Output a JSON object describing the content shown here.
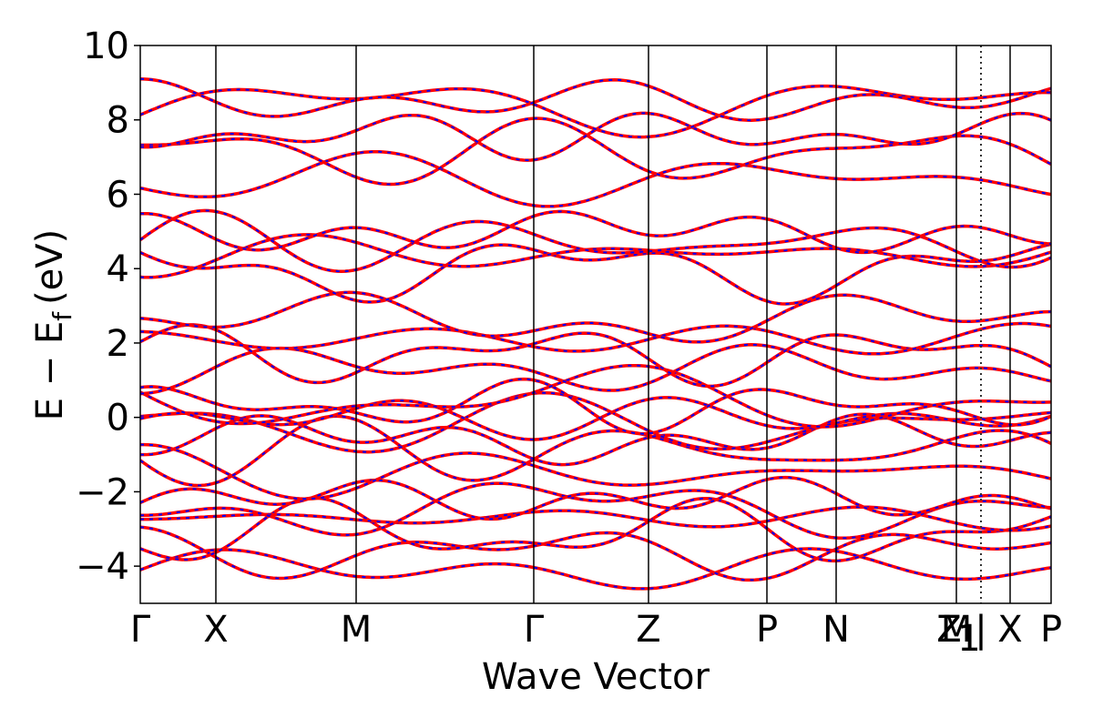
{
  "chart_data": {
    "type": "line",
    "title": "",
    "xlabel": "Wave Vector",
    "ylabel": {
      "main": "E − E",
      "sub": "f",
      "unit": "(eV)"
    },
    "ylim": [
      -5,
      10
    ],
    "xlim": [
      0,
      1
    ],
    "grid": false,
    "legend": "none",
    "y_ticks": [
      -4,
      -2,
      0,
      2,
      4,
      6,
      8,
      10
    ],
    "y_tick_labels": [
      "−4",
      "−2",
      "0",
      "2",
      "4",
      "6",
      "8",
      "10"
    ],
    "high_symmetry_points": [
      {
        "label": "Γ",
        "x": 0.0
      },
      {
        "label": "X",
        "x": 0.083
      },
      {
        "label": "M",
        "x": 0.237
      },
      {
        "label": "Γ",
        "x": 0.432
      },
      {
        "label": "Z",
        "x": 0.558
      },
      {
        "label": "P",
        "x": 0.688
      },
      {
        "label": "N",
        "x": 0.764
      },
      {
        "label": "Z",
        "x": 0.896
      },
      {
        "label": "M",
        "x": 0.896
      },
      {
        "label": "1",
        "x": 0.896
      },
      {
        "label": "|",
        "x": 0.923
      },
      {
        "label": "X",
        "x": 0.955
      },
      {
        "label": "P",
        "x": 1.0
      }
    ],
    "series_colors": {
      "overlay_a": "#ff0000",
      "overlay_b": "#0000ff"
    },
    "bands_at_gamma_approx": [
      -4.1,
      -3.6,
      -3.1,
      -2.7,
      -2.4,
      -2.2,
      -1.5,
      -0.9,
      -0.6,
      -0.2,
      0.0,
      0.3,
      0.5,
      1.3,
      1.7,
      2.1,
      2.6,
      4.0,
      4.4,
      4.7,
      5.0,
      6.4,
      7.1,
      7.6,
      8.4,
      8.5
    ]
  }
}
